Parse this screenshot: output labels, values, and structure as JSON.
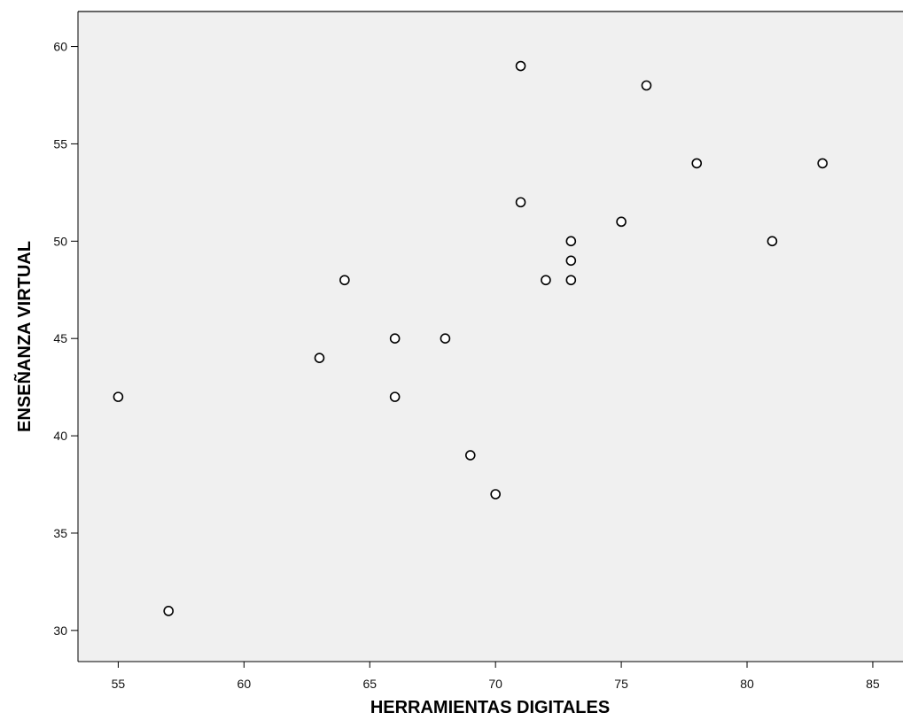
{
  "chart_data": {
    "type": "scatter",
    "xlabel": "HERRAMIENTAS DIGITALES",
    "ylabel": "ENSEÑANZA VIRTUAL",
    "xlim": [
      53.4,
      86.2
    ],
    "ylim": [
      28.4,
      61.8
    ],
    "x_ticks": [
      55,
      60,
      65,
      70,
      75,
      80,
      85
    ],
    "y_ticks": [
      30,
      35,
      40,
      45,
      50,
      55,
      60
    ],
    "grid": false,
    "legend": "none",
    "colors": {
      "plot_background": "#f0f0f0",
      "frame": "#666666",
      "marker_fill": "#ffffff",
      "marker_stroke": "#000000"
    },
    "points": [
      {
        "x": 55,
        "y": 42
      },
      {
        "x": 57,
        "y": 31
      },
      {
        "x": 63,
        "y": 44
      },
      {
        "x": 64,
        "y": 48
      },
      {
        "x": 66,
        "y": 45
      },
      {
        "x": 66,
        "y": 42
      },
      {
        "x": 68,
        "y": 45
      },
      {
        "x": 69,
        "y": 39
      },
      {
        "x": 70,
        "y": 37
      },
      {
        "x": 71,
        "y": 59
      },
      {
        "x": 71,
        "y": 52
      },
      {
        "x": 72,
        "y": 48
      },
      {
        "x": 73,
        "y": 50
      },
      {
        "x": 73,
        "y": 49
      },
      {
        "x": 73,
        "y": 48
      },
      {
        "x": 75,
        "y": 51
      },
      {
        "x": 76,
        "y": 58
      },
      {
        "x": 78,
        "y": 54
      },
      {
        "x": 81,
        "y": 50
      },
      {
        "x": 83,
        "y": 54
      }
    ]
  }
}
